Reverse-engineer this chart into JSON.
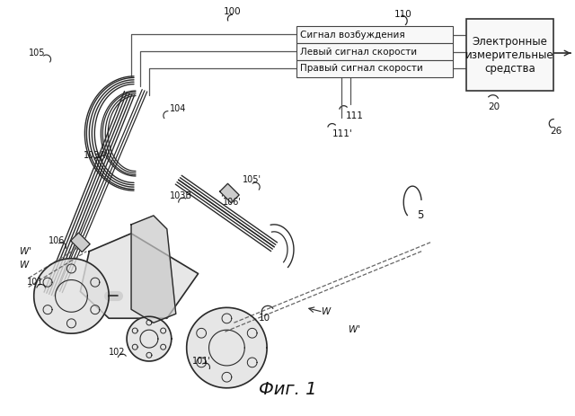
{
  "bg_color": "#ffffff",
  "title": "Фиг. 1",
  "title_fontsize": 14,
  "box_label": "Электронные\nизмерительные\nсредства",
  "signal_labels": [
    "Сигнал возбуждения",
    "Левый сигнал скорости",
    "Правый сигнал скорости"
  ],
  "c_color": "#2a2a2a",
  "label_fs": 7.0
}
